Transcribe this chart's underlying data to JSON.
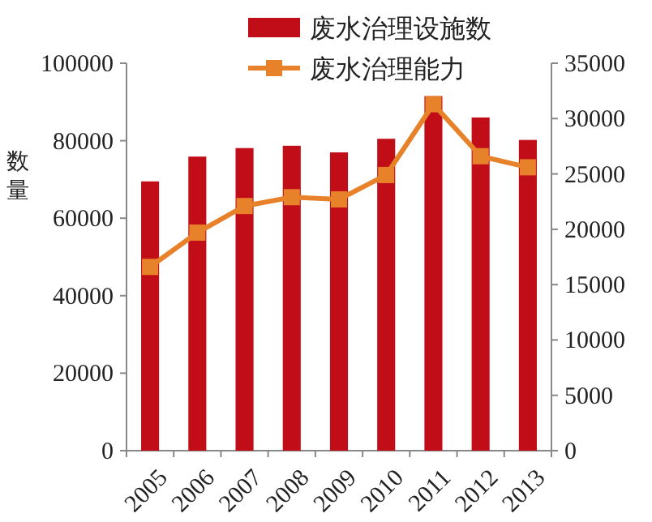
{
  "chart_data": {
    "type": "bar",
    "ylabel": "数量",
    "categories": [
      "2005",
      "2006",
      "2007",
      "2008",
      "2009",
      "2010",
      "2011",
      "2012",
      "2013"
    ],
    "series": [
      {
        "name": "废水治理设施数",
        "color": "#c00d18",
        "values": [
          69500,
          75900,
          78100,
          78700,
          77000,
          80500,
          91500,
          86000,
          80200
        ]
      },
      {
        "name": "废水治理能力",
        "type": "line",
        "axis": "y2",
        "color": "#e8822a",
        "marker": "square",
        "values": [
          16600,
          19700,
          22100,
          22900,
          22700,
          24900,
          31300,
          26600,
          25600
        ]
      }
    ],
    "ylim": [
      0,
      100000
    ],
    "yticks": [
      0,
      20000,
      40000,
      60000,
      80000,
      100000
    ],
    "y2lim": [
      0,
      35000
    ],
    "y2ticks": [
      0,
      5000,
      10000,
      15000,
      20000,
      25000,
      30000,
      35000
    ],
    "legend": "top",
    "grid": false
  }
}
